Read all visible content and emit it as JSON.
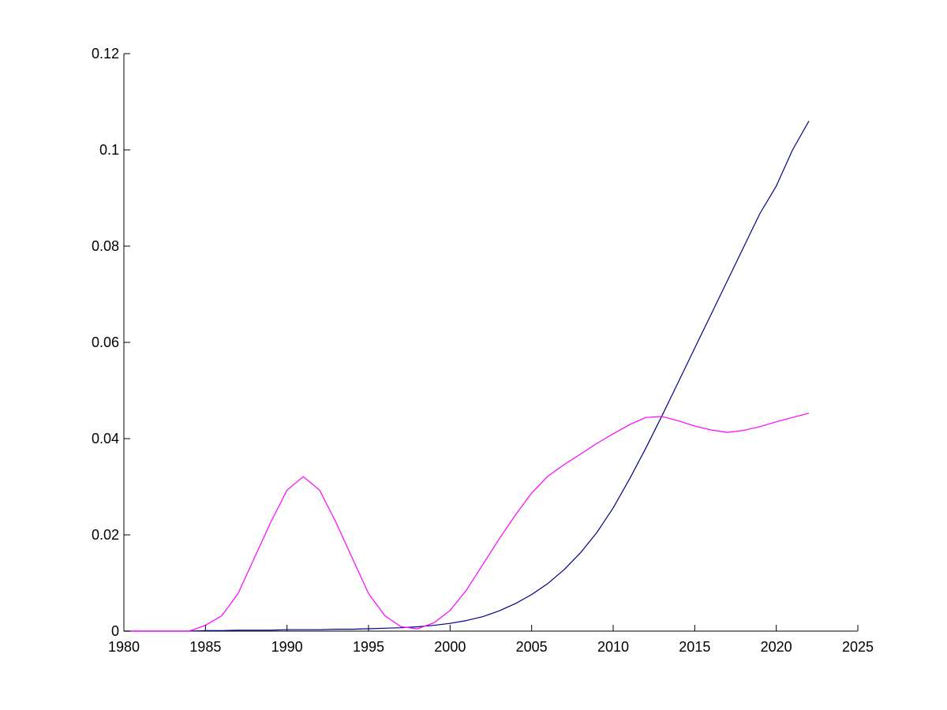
{
  "chart_data": {
    "type": "line",
    "title": "",
    "xlabel": "",
    "ylabel": "",
    "xlim": [
      1980,
      2025
    ],
    "ylim": [
      0,
      0.12
    ],
    "grid": false,
    "legend": "none",
    "x_ticks": [
      "1980",
      "1985",
      "1990",
      "1995",
      "2000",
      "2005",
      "2010",
      "2015",
      "2020",
      "2025"
    ],
    "y_ticks": [
      "0",
      "0.02",
      "0.04",
      "0.06",
      "0.08",
      "0.1",
      "0.12"
    ],
    "x_tick_values": [
      1980,
      1985,
      1990,
      1995,
      2000,
      2005,
      2010,
      2015,
      2020,
      2025
    ],
    "y_tick_values": [
      0,
      0.02,
      0.04,
      0.06,
      0.08,
      0.1,
      0.12
    ],
    "series": [
      {
        "color": "#00008b",
        "x": [
          1980,
          1981,
          1982,
          1983,
          1984,
          1985,
          1986,
          1987,
          1988,
          1989,
          1990,
          1991,
          1992,
          1993,
          1994,
          1995,
          1996,
          1997,
          1998,
          1999,
          2000,
          2001,
          2002,
          2003,
          2004,
          2005,
          2006,
          2007,
          2008,
          2009,
          2010,
          2011,
          2012,
          2013,
          2014,
          2015,
          2016,
          2017,
          2018,
          2019,
          2020,
          2021,
          2022
        ],
        "values": [
          0,
          0,
          0,
          0,
          0,
          0.0001,
          0.0001,
          0.0002,
          0.0002,
          0.0002,
          0.0003,
          0.0003,
          0.0003,
          0.0004,
          0.0004,
          0.0005,
          0.0006,
          0.0007,
          0.0009,
          0.0012,
          0.0016,
          0.0022,
          0.003,
          0.0042,
          0.0057,
          0.0076,
          0.0099,
          0.0128,
          0.0163,
          0.0205,
          0.0256,
          0.0316,
          0.038,
          0.0448,
          0.0518,
          0.0588,
          0.0658,
          0.0728,
          0.0798,
          0.0868,
          0.0925,
          0.1,
          0.106
        ]
      },
      {
        "color": "#ff00ff",
        "x": [
          1980,
          1981,
          1982,
          1983,
          1984,
          1985,
          1986,
          1987,
          1988,
          1989,
          1990,
          1991,
          1992,
          1993,
          1994,
          1995,
          1996,
          1997,
          1998,
          1999,
          2000,
          2001,
          2002,
          2003,
          2004,
          2005,
          2006,
          2007,
          2008,
          2009,
          2010,
          2011,
          2012,
          2013,
          2014,
          2015,
          2016,
          2017,
          2018,
          2019,
          2020,
          2021,
          2022
        ],
        "values": [
          0,
          0,
          0,
          0,
          0,
          0.0012,
          0.0032,
          0.0078,
          0.0152,
          0.0226,
          0.0293,
          0.0321,
          0.0293,
          0.0226,
          0.0152,
          0.0078,
          0.0032,
          0.0009,
          0.0005,
          0.0017,
          0.0043,
          0.0085,
          0.0138,
          0.0191,
          0.0241,
          0.0287,
          0.0322,
          0.0346,
          0.0368,
          0.039,
          0.041,
          0.0429,
          0.0444,
          0.0446,
          0.0437,
          0.0426,
          0.0418,
          0.0413,
          0.0417,
          0.0425,
          0.0435,
          0.0444,
          0.0453
        ]
      }
    ]
  }
}
